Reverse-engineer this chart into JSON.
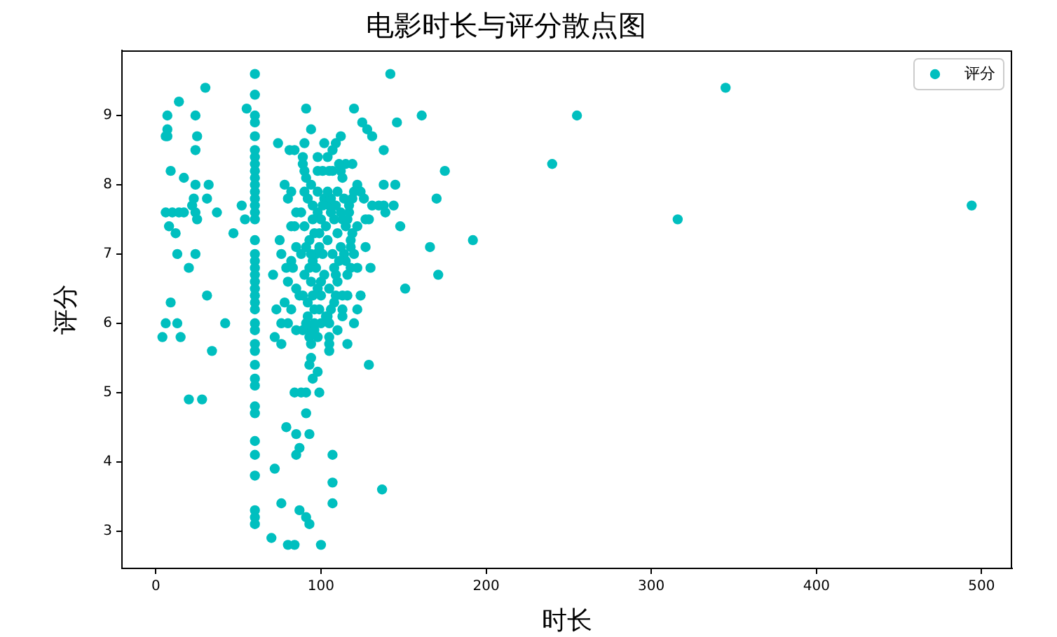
{
  "chart_data": {
    "type": "scatter",
    "title": "电影时长与评分散点图",
    "xlabel": "时长",
    "ylabel": "评分",
    "x": [
      7,
      14,
      30,
      7,
      6,
      7,
      24,
      25,
      24,
      9,
      17,
      24,
      32,
      31,
      23,
      22,
      24,
      25,
      6,
      10,
      14,
      17,
      37,
      8,
      12,
      13,
      24,
      20,
      9,
      31,
      6,
      13,
      42,
      4,
      15,
      34,
      20,
      28,
      47,
      52,
      54,
      55,
      60,
      60,
      60,
      60,
      60,
      60,
      60,
      60,
      60,
      60,
      60,
      60,
      60,
      60,
      60,
      60,
      60,
      60,
      60,
      60,
      60,
      60,
      60,
      60,
      60,
      60,
      60,
      60,
      60,
      60,
      60,
      60,
      60,
      60,
      60,
      60,
      60,
      60,
      60,
      60,
      60,
      74,
      81,
      84,
      90,
      91,
      94,
      89,
      89,
      90,
      91,
      102,
      98,
      104,
      107,
      109,
      112,
      101,
      105,
      115,
      119,
      112,
      113,
      120,
      125,
      128,
      131,
      138,
      146,
      142,
      161,
      175,
      170,
      166,
      171,
      192,
      151,
      148,
      138,
      145,
      138,
      144,
      135,
      131,
      139,
      129,
      127,
      127,
      130,
      122,
      122,
      124,
      122,
      120,
      116,
      129,
      137,
      107,
      107,
      107,
      100,
      80,
      84,
      70,
      76,
      87,
      91,
      93,
      72,
      85,
      93,
      87,
      85,
      79,
      91,
      84,
      88,
      91,
      99,
      98,
      95,
      93,
      94,
      105,
      105,
      105,
      94,
      93,
      94,
      72,
      76,
      71,
      76,
      80,
      73,
      85,
      89,
      75,
      76,
      78,
      80,
      82,
      85,
      82,
      84,
      85,
      82,
      79,
      83,
      80,
      78,
      82,
      85,
      87,
      110,
      109,
      113,
      116,
      108,
      113,
      113,
      104,
      110,
      105,
      100,
      96,
      118,
      118,
      116,
      114,
      115,
      117,
      117,
      119,
      120,
      113,
      122,
      124,
      126,
      111,
      107,
      98,
      94,
      98,
      102,
      105,
      92,
      95,
      98,
      100,
      103,
      96,
      93,
      99,
      101,
      95,
      97,
      102,
      94,
      98,
      100,
      92,
      96,
      103,
      91,
      95,
      99,
      104,
      97,
      93,
      100,
      95,
      99,
      90,
      88,
      90,
      106,
      108,
      107,
      110,
      112,
      108,
      111,
      105,
      89,
      92,
      96,
      98,
      106,
      109,
      104,
      90,
      88,
      91,
      94,
      101,
      115,
      112,
      110,
      114,
      116,
      119,
      120,
      118,
      109,
      106,
      255,
      240,
      345,
      494,
      316
    ],
    "series": [
      {
        "name": "评分",
        "color": "#00bfbf",
        "values": [
          9.0,
          9.2,
          9.4,
          8.8,
          8.7,
          8.7,
          9.0,
          8.7,
          8.5,
          8.2,
          8.1,
          8.0,
          8.0,
          7.8,
          7.8,
          7.7,
          7.6,
          7.5,
          7.6,
          7.6,
          7.6,
          7.6,
          7.6,
          7.4,
          7.3,
          7.0,
          7.0,
          6.8,
          6.3,
          6.4,
          6.0,
          6.0,
          6.0,
          5.8,
          5.8,
          5.6,
          4.9,
          4.9,
          7.3,
          7.7,
          7.5,
          9.1,
          9.6,
          9.3,
          9.0,
          8.9,
          8.7,
          8.5,
          8.4,
          8.3,
          8.2,
          8.1,
          8.0,
          7.9,
          7.8,
          7.7,
          7.6,
          7.5,
          7.2,
          7.0,
          6.9,
          6.8,
          6.7,
          6.6,
          6.5,
          6.4,
          6.3,
          6.2,
          6.0,
          5.9,
          5.7,
          5.6,
          5.4,
          5.2,
          5.1,
          4.8,
          4.7,
          4.3,
          4.1,
          3.8,
          3.3,
          3.2,
          3.1,
          8.6,
          8.5,
          8.5,
          8.6,
          9.1,
          8.8,
          8.4,
          8.3,
          8.2,
          8.1,
          8.6,
          8.4,
          8.4,
          8.5,
          8.6,
          8.7,
          8.2,
          8.2,
          8.3,
          8.3,
          8.2,
          8.1,
          9.1,
          8.9,
          8.8,
          8.7,
          8.5,
          8.9,
          9.6,
          9.0,
          8.2,
          7.8,
          7.1,
          6.7,
          7.2,
          6.5,
          7.4,
          8.0,
          8.0,
          7.7,
          7.7,
          7.7,
          7.7,
          7.6,
          7.5,
          7.5,
          7.1,
          6.8,
          6.8,
          7.4,
          6.4,
          6.2,
          6.0,
          5.7,
          5.4,
          3.6,
          4.1,
          3.7,
          3.4,
          2.8,
          2.8,
          2.8,
          2.9,
          3.4,
          3.3,
          3.2,
          3.1,
          3.9,
          4.4,
          4.4,
          4.2,
          4.1,
          4.5,
          4.7,
          5.0,
          5.0,
          5.0,
          5.0,
          5.3,
          5.2,
          5.4,
          5.5,
          5.7,
          5.6,
          5.8,
          5.7,
          5.8,
          5.9,
          5.8,
          5.7,
          6.7,
          6.0,
          6.0,
          6.2,
          5.9,
          5.9,
          7.2,
          7.0,
          8.0,
          7.8,
          7.9,
          7.6,
          7.4,
          7.4,
          7.1,
          6.9,
          6.8,
          6.8,
          6.6,
          6.3,
          6.2,
          6.5,
          6.4,
          6.6,
          6.4,
          6.4,
          6.4,
          6.3,
          6.2,
          6.1,
          6.1,
          5.9,
          6.0,
          6.0,
          6.0,
          7.1,
          7.2,
          6.7,
          7.0,
          6.9,
          7.6,
          7.7,
          7.8,
          7.9,
          7.5,
          8.0,
          7.9,
          7.8,
          8.3,
          8.2,
          8.2,
          8.0,
          7.9,
          7.8,
          7.7,
          7.8,
          7.7,
          7.6,
          7.5,
          7.4,
          7.3,
          7.2,
          7.1,
          7.0,
          6.9,
          6.8,
          6.7,
          6.6,
          6.5,
          6.4,
          6.3,
          6.2,
          6.1,
          6.0,
          7.5,
          7.3,
          7.2,
          7.0,
          6.8,
          6.6,
          6.4,
          6.2,
          7.4,
          7.0,
          6.7,
          7.8,
          7.5,
          7.0,
          7.3,
          7.1,
          6.8,
          6.9,
          6.5,
          6.4,
          6.1,
          5.9,
          5.8,
          7.6,
          7.7,
          7.9,
          7.9,
          7.6,
          7.1,
          7.0,
          7.7,
          7.4,
          7.6,
          7.9,
          7.8,
          7.5,
          7.3,
          7.0,
          6.8,
          6.7,
          6.2,
          9.0,
          8.3,
          9.4,
          7.7,
          7.5
        ]
      }
    ],
    "xlim": [
      -20.5,
      518.5
    ],
    "ylim": [
      2.46,
      9.94
    ],
    "xticks": [
      0,
      100,
      200,
      300,
      400,
      500
    ],
    "yticks": [
      3,
      4,
      5,
      6,
      7,
      8,
      9
    ],
    "grid": false,
    "legend": "top right",
    "marker": "circle"
  }
}
